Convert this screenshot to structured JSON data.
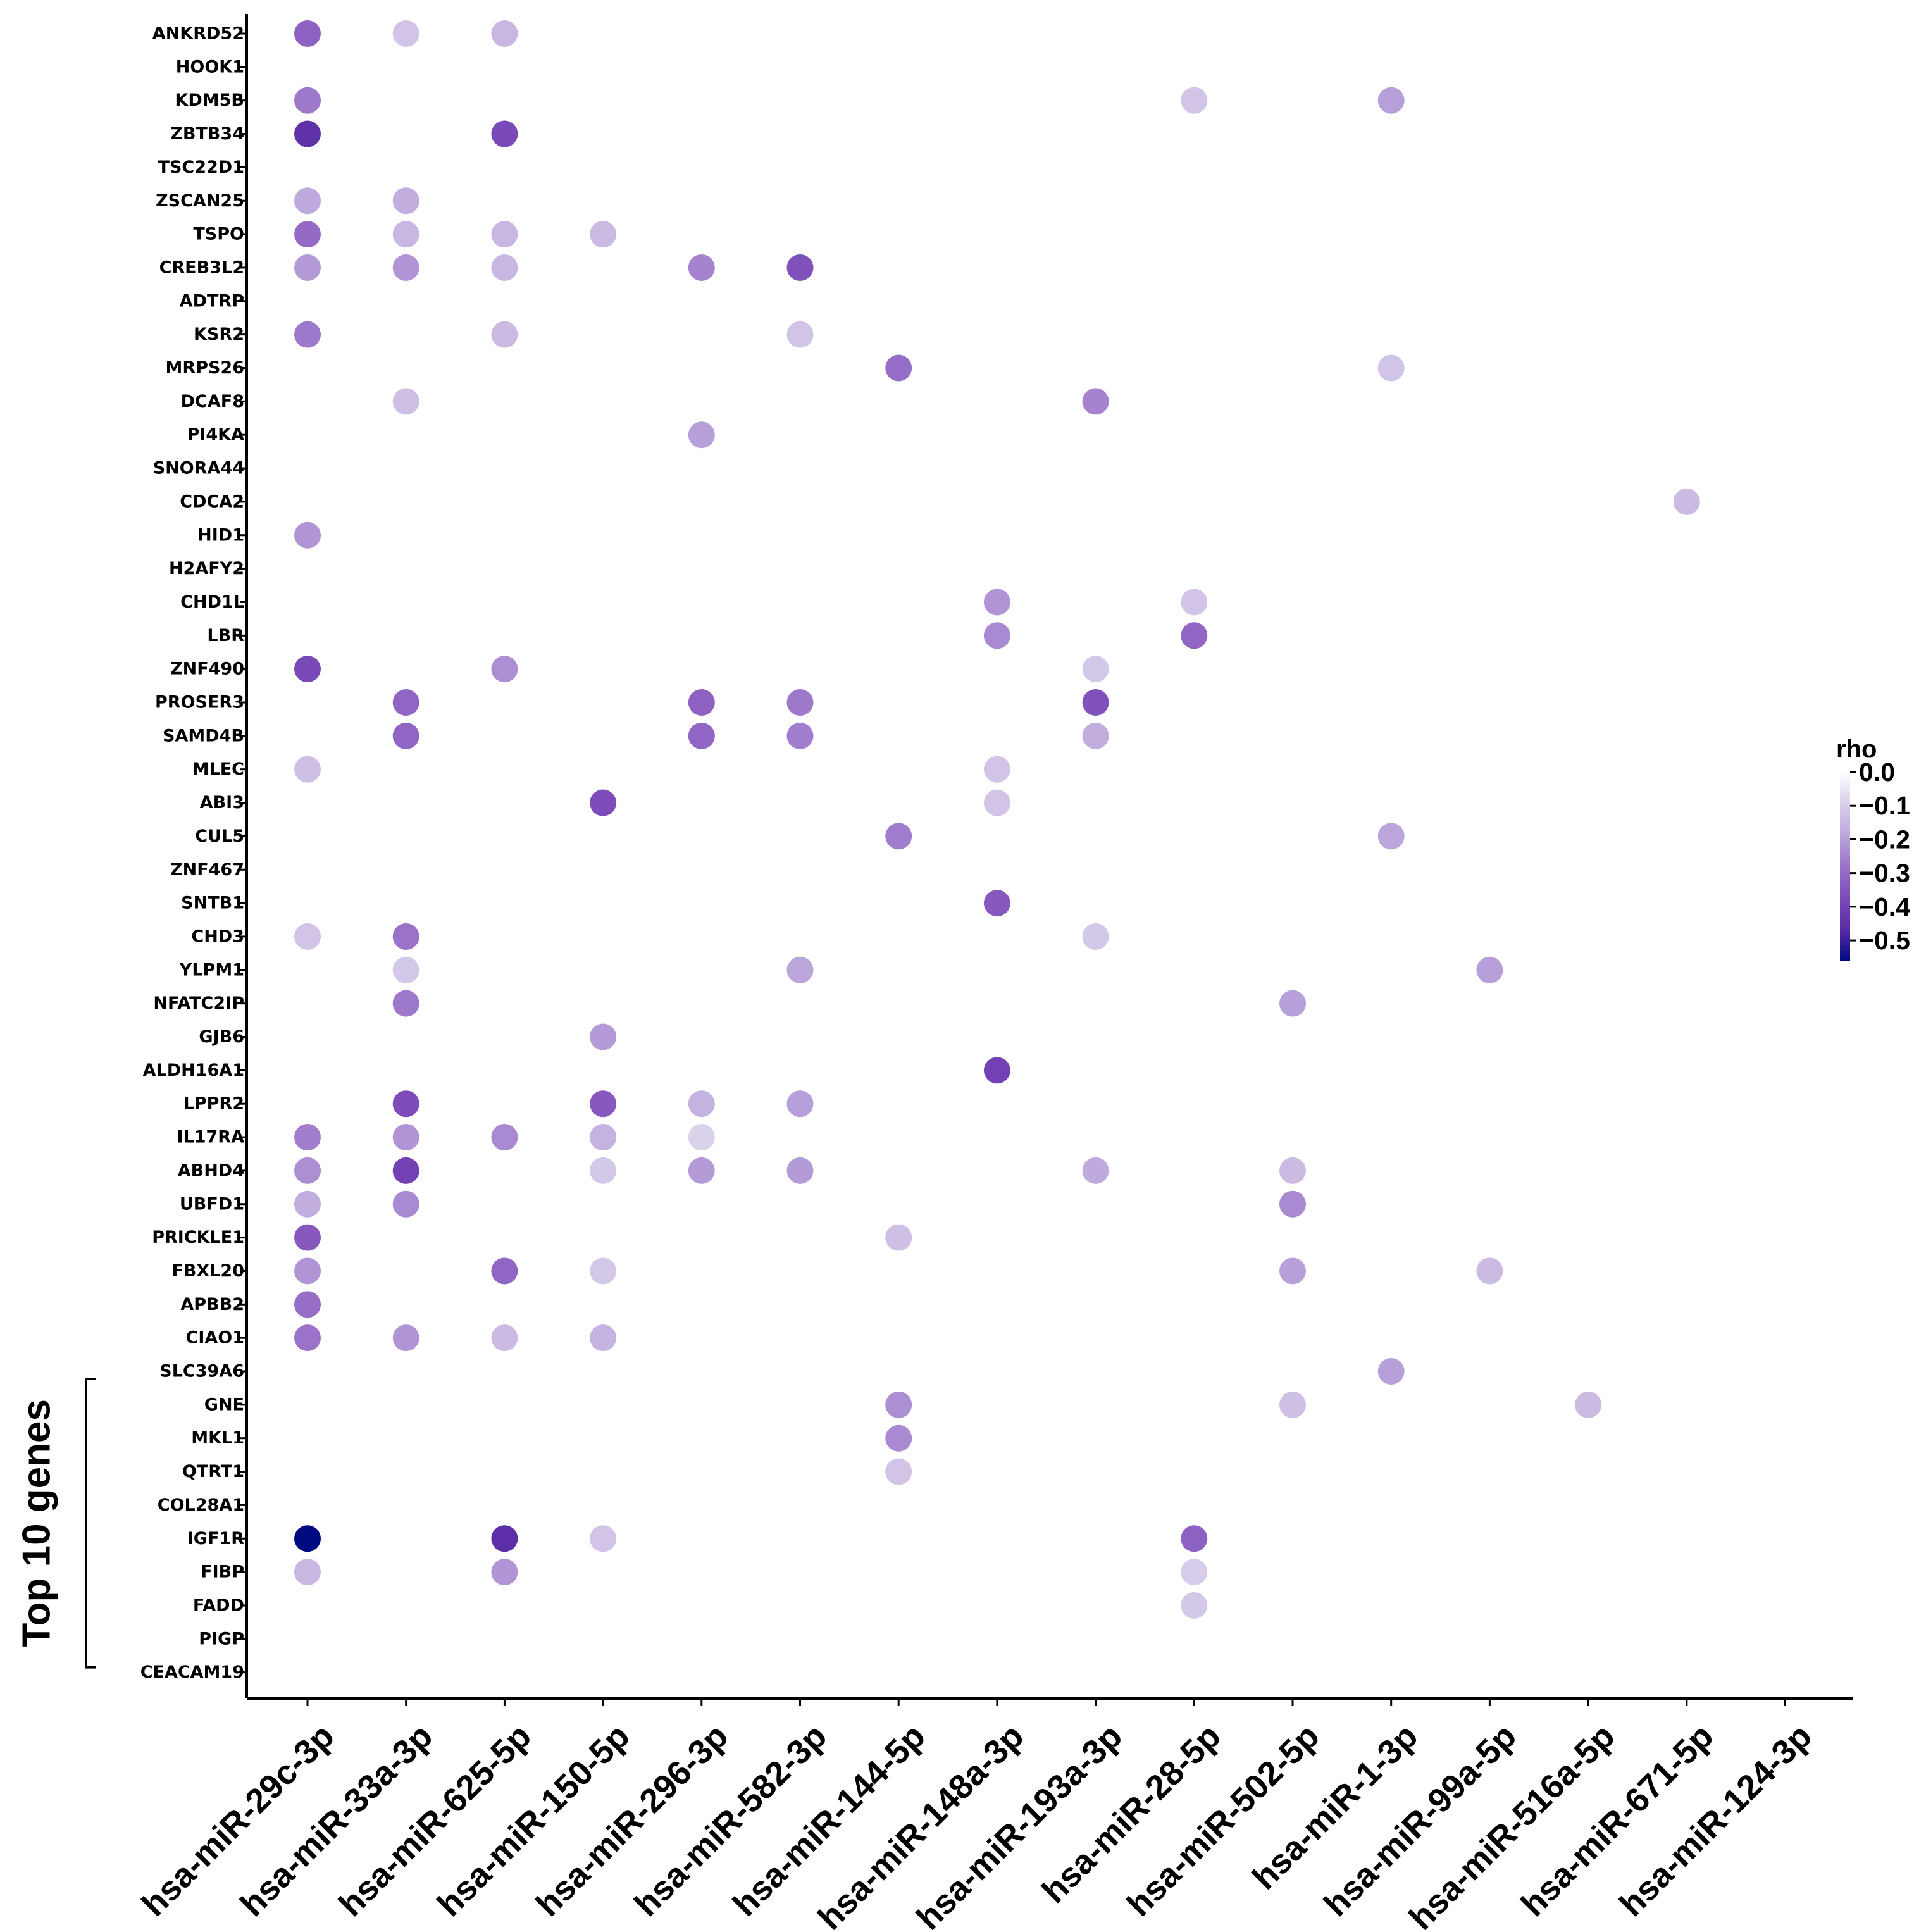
{
  "chart_data": {
    "type": "dot-plot",
    "title": "",
    "xlabel": "",
    "ylabel": "",
    "x_categories": [
      "hsa-miR-29c-3p",
      "hsa-miR-33a-3p",
      "hsa-miR-625-5p",
      "hsa-miR-150-5p",
      "hsa-miR-296-3p",
      "hsa-miR-582-3p",
      "hsa-miR-144-5p",
      "hsa-miR-148a-3p",
      "hsa-miR-193a-3p",
      "hsa-miR-28-5p",
      "hsa-miR-502-5p",
      "hsa-miR-1-3p",
      "hsa-miR-99a-5p",
      "hsa-miR-516a-5p",
      "hsa-miR-671-5p",
      "hsa-miR-124-3p"
    ],
    "y_categories": [
      "ANKRD52",
      "HOOK1",
      "KDM5B",
      "ZBTB34",
      "TSC22D1",
      "ZSCAN25",
      "TSPO",
      "CREB3L2",
      "ADTRP",
      "KSR2",
      "MRPS26",
      "DCAF8",
      "PI4KA",
      "SNORA44",
      "CDCA2",
      "HID1",
      "H2AFY2",
      "CHD1L",
      "LBR",
      "ZNF490",
      "PROSER3",
      "SAMD4B",
      "MLEC",
      "ABI3",
      "CUL5",
      "ZNF467",
      "SNTB1",
      "CHD3",
      "YLPM1",
      "NFATC2IP",
      "GJB6",
      "ALDH16A1",
      "LPPR2",
      "IL17RA",
      "ABHD4",
      "UBFD1",
      "PRICKLE1",
      "FBXL20",
      "APBB2",
      "CIAO1",
      "SLC39A6",
      "GNE",
      "MKL1",
      "QTRT1",
      "COL28A1",
      "IGF1R",
      "FIBP",
      "FADD",
      "PIGP",
      "CEACAM19"
    ],
    "points": [
      {
        "gene": "ANKRD52",
        "mirna": "hsa-miR-29c-3p",
        "rho": -0.32
      },
      {
        "gene": "ANKRD52",
        "mirna": "hsa-miR-33a-3p",
        "rho": -0.12
      },
      {
        "gene": "ANKRD52",
        "mirna": "hsa-miR-625-5p",
        "rho": -0.15
      },
      {
        "gene": "KDM5B",
        "mirna": "hsa-miR-29c-3p",
        "rho": -0.27
      },
      {
        "gene": "KDM5B",
        "mirna": "hsa-miR-28-5p",
        "rho": -0.12
      },
      {
        "gene": "KDM5B",
        "mirna": "hsa-miR-1-3p",
        "rho": -0.2
      },
      {
        "gene": "ZBTB34",
        "mirna": "hsa-miR-29c-3p",
        "rho": -0.45
      },
      {
        "gene": "ZBTB34",
        "mirna": "hsa-miR-625-5p",
        "rho": -0.38
      },
      {
        "gene": "ZSCAN25",
        "mirna": "hsa-miR-29c-3p",
        "rho": -0.18
      },
      {
        "gene": "ZSCAN25",
        "mirna": "hsa-miR-33a-3p",
        "rho": -0.17
      },
      {
        "gene": "TSPO",
        "mirna": "hsa-miR-29c-3p",
        "rho": -0.3
      },
      {
        "gene": "TSPO",
        "mirna": "hsa-miR-33a-3p",
        "rho": -0.15
      },
      {
        "gene": "TSPO",
        "mirna": "hsa-miR-625-5p",
        "rho": -0.15
      },
      {
        "gene": "TSPO",
        "mirna": "hsa-miR-150-5p",
        "rho": -0.14
      },
      {
        "gene": "CREB3L2",
        "mirna": "hsa-miR-29c-3p",
        "rho": -0.21
      },
      {
        "gene": "CREB3L2",
        "mirna": "hsa-miR-33a-3p",
        "rho": -0.22
      },
      {
        "gene": "CREB3L2",
        "mirna": "hsa-miR-625-5p",
        "rho": -0.15
      },
      {
        "gene": "CREB3L2",
        "mirna": "hsa-miR-296-3p",
        "rho": -0.25
      },
      {
        "gene": "CREB3L2",
        "mirna": "hsa-miR-582-3p",
        "rho": -0.36
      },
      {
        "gene": "KSR2",
        "mirna": "hsa-miR-29c-3p",
        "rho": -0.27
      },
      {
        "gene": "KSR2",
        "mirna": "hsa-miR-625-5p",
        "rho": -0.14
      },
      {
        "gene": "KSR2",
        "mirna": "hsa-miR-582-3p",
        "rho": -0.12
      },
      {
        "gene": "MRPS26",
        "mirna": "hsa-miR-144-5p",
        "rho": -0.29
      },
      {
        "gene": "MRPS26",
        "mirna": "hsa-miR-1-3p",
        "rho": -0.12
      },
      {
        "gene": "DCAF8",
        "mirna": "hsa-miR-33a-3p",
        "rho": -0.13
      },
      {
        "gene": "DCAF8",
        "mirna": "hsa-miR-193a-3p",
        "rho": -0.25
      },
      {
        "gene": "PI4KA",
        "mirna": "hsa-miR-296-3p",
        "rho": -0.2
      },
      {
        "gene": "CDCA2",
        "mirna": "hsa-miR-671-5p",
        "rho": -0.14
      },
      {
        "gene": "HID1",
        "mirna": "hsa-miR-29c-3p",
        "rho": -0.22
      },
      {
        "gene": "CHD1L",
        "mirna": "hsa-miR-148a-3p",
        "rho": -0.22
      },
      {
        "gene": "CHD1L",
        "mirna": "hsa-miR-28-5p",
        "rho": -0.12
      },
      {
        "gene": "LBR",
        "mirna": "hsa-miR-148a-3p",
        "rho": -0.24
      },
      {
        "gene": "LBR",
        "mirna": "hsa-miR-28-5p",
        "rho": -0.31
      },
      {
        "gene": "ZNF490",
        "mirna": "hsa-miR-29c-3p",
        "rho": -0.38
      },
      {
        "gene": "ZNF490",
        "mirna": "hsa-miR-625-5p",
        "rho": -0.23
      },
      {
        "gene": "ZNF490",
        "mirna": "hsa-miR-193a-3p",
        "rho": -0.11
      },
      {
        "gene": "PROSER3",
        "mirna": "hsa-miR-33a-3p",
        "rho": -0.31
      },
      {
        "gene": "PROSER3",
        "mirna": "hsa-miR-296-3p",
        "rho": -0.32
      },
      {
        "gene": "PROSER3",
        "mirna": "hsa-miR-582-3p",
        "rho": -0.27
      },
      {
        "gene": "PROSER3",
        "mirna": "hsa-miR-193a-3p",
        "rho": -0.36
      },
      {
        "gene": "SAMD4B",
        "mirna": "hsa-miR-33a-3p",
        "rho": -0.31
      },
      {
        "gene": "SAMD4B",
        "mirna": "hsa-miR-296-3p",
        "rho": -0.31
      },
      {
        "gene": "SAMD4B",
        "mirna": "hsa-miR-582-3p",
        "rho": -0.26
      },
      {
        "gene": "SAMD4B",
        "mirna": "hsa-miR-193a-3p",
        "rho": -0.17
      },
      {
        "gene": "MLEC",
        "mirna": "hsa-miR-29c-3p",
        "rho": -0.13
      },
      {
        "gene": "MLEC",
        "mirna": "hsa-miR-148a-3p",
        "rho": -0.12
      },
      {
        "gene": "ABI3",
        "mirna": "hsa-miR-150-5p",
        "rho": -0.37
      },
      {
        "gene": "ABI3",
        "mirna": "hsa-miR-148a-3p",
        "rho": -0.12
      },
      {
        "gene": "CUL5",
        "mirna": "hsa-miR-144-5p",
        "rho": -0.26
      },
      {
        "gene": "CUL5",
        "mirna": "hsa-miR-1-3p",
        "rho": -0.19
      },
      {
        "gene": "SNTB1",
        "mirna": "hsa-miR-148a-3p",
        "rho": -0.34
      },
      {
        "gene": "CHD3",
        "mirna": "hsa-miR-29c-3p",
        "rho": -0.12
      },
      {
        "gene": "CHD3",
        "mirna": "hsa-miR-33a-3p",
        "rho": -0.28
      },
      {
        "gene": "CHD3",
        "mirna": "hsa-miR-193a-3p",
        "rho": -0.11
      },
      {
        "gene": "YLPM1",
        "mirna": "hsa-miR-33a-3p",
        "rho": -0.11
      },
      {
        "gene": "YLPM1",
        "mirna": "hsa-miR-582-3p",
        "rho": -0.19
      },
      {
        "gene": "YLPM1",
        "mirna": "hsa-miR-99a-5p",
        "rho": -0.2
      },
      {
        "gene": "NFATC2IP",
        "mirna": "hsa-miR-33a-3p",
        "rho": -0.27
      },
      {
        "gene": "NFATC2IP",
        "mirna": "hsa-miR-502-5p",
        "rho": -0.2
      },
      {
        "gene": "GJB6",
        "mirna": "hsa-miR-150-5p",
        "rho": -0.21
      },
      {
        "gene": "ALDH16A1",
        "mirna": "hsa-miR-148a-3p",
        "rho": -0.4
      },
      {
        "gene": "LPPR2",
        "mirna": "hsa-miR-33a-3p",
        "rho": -0.37
      },
      {
        "gene": "LPPR2",
        "mirna": "hsa-miR-150-5p",
        "rho": -0.34
      },
      {
        "gene": "LPPR2",
        "mirna": "hsa-miR-296-3p",
        "rho": -0.16
      },
      {
        "gene": "LPPR2",
        "mirna": "hsa-miR-582-3p",
        "rho": -0.2
      },
      {
        "gene": "IL17RA",
        "mirna": "hsa-miR-29c-3p",
        "rho": -0.26
      },
      {
        "gene": "IL17RA",
        "mirna": "hsa-miR-33a-3p",
        "rho": -0.22
      },
      {
        "gene": "IL17RA",
        "mirna": "hsa-miR-625-5p",
        "rho": -0.24
      },
      {
        "gene": "IL17RA",
        "mirna": "hsa-miR-150-5p",
        "rho": -0.16
      },
      {
        "gene": "IL17RA",
        "mirna": "hsa-miR-296-3p",
        "rho": -0.09
      },
      {
        "gene": "ABHD4",
        "mirna": "hsa-miR-29c-3p",
        "rho": -0.23
      },
      {
        "gene": "ABHD4",
        "mirna": "hsa-miR-33a-3p",
        "rho": -0.4
      },
      {
        "gene": "ABHD4",
        "mirna": "hsa-miR-150-5p",
        "rho": -0.11
      },
      {
        "gene": "ABHD4",
        "mirna": "hsa-miR-296-3p",
        "rho": -0.21
      },
      {
        "gene": "ABHD4",
        "mirna": "hsa-miR-582-3p",
        "rho": -0.21
      },
      {
        "gene": "ABHD4",
        "mirna": "hsa-miR-193a-3p",
        "rho": -0.18
      },
      {
        "gene": "ABHD4",
        "mirna": "hsa-miR-502-5p",
        "rho": -0.14
      },
      {
        "gene": "UBFD1",
        "mirna": "hsa-miR-29c-3p",
        "rho": -0.17
      },
      {
        "gene": "UBFD1",
        "mirna": "hsa-miR-33a-3p",
        "rho": -0.24
      },
      {
        "gene": "UBFD1",
        "mirna": "hsa-miR-502-5p",
        "rho": -0.24
      },
      {
        "gene": "PRICKLE1",
        "mirna": "hsa-miR-29c-3p",
        "rho": -0.34
      },
      {
        "gene": "PRICKLE1",
        "mirna": "hsa-miR-144-5p",
        "rho": -0.13
      },
      {
        "gene": "FBXL20",
        "mirna": "hsa-miR-29c-3p",
        "rho": -0.22
      },
      {
        "gene": "FBXL20",
        "mirna": "hsa-miR-625-5p",
        "rho": -0.31
      },
      {
        "gene": "FBXL20",
        "mirna": "hsa-miR-150-5p",
        "rho": -0.11
      },
      {
        "gene": "FBXL20",
        "mirna": "hsa-miR-502-5p",
        "rho": -0.2
      },
      {
        "gene": "FBXL20",
        "mirna": "hsa-miR-99a-5p",
        "rho": -0.14
      },
      {
        "gene": "APBB2",
        "mirna": "hsa-miR-29c-3p",
        "rho": -0.29
      },
      {
        "gene": "CIAO1",
        "mirna": "hsa-miR-29c-3p",
        "rho": -0.28
      },
      {
        "gene": "CIAO1",
        "mirna": "hsa-miR-33a-3p",
        "rho": -0.22
      },
      {
        "gene": "CIAO1",
        "mirna": "hsa-miR-625-5p",
        "rho": -0.14
      },
      {
        "gene": "CIAO1",
        "mirna": "hsa-miR-150-5p",
        "rho": -0.16
      },
      {
        "gene": "SLC39A6",
        "mirna": "hsa-miR-1-3p",
        "rho": -0.2
      },
      {
        "gene": "GNE",
        "mirna": "hsa-miR-144-5p",
        "rho": -0.23
      },
      {
        "gene": "GNE",
        "mirna": "hsa-miR-502-5p",
        "rho": -0.13
      },
      {
        "gene": "GNE",
        "mirna": "hsa-miR-516a-5p",
        "rho": -0.14
      },
      {
        "gene": "MKL1",
        "mirna": "hsa-miR-144-5p",
        "rho": -0.24
      },
      {
        "gene": "QTRT1",
        "mirna": "hsa-miR-144-5p",
        "rho": -0.12
      },
      {
        "gene": "IGF1R",
        "mirna": "hsa-miR-29c-3p",
        "rho": -0.56
      },
      {
        "gene": "IGF1R",
        "mirna": "hsa-miR-625-5p",
        "rho": -0.46
      },
      {
        "gene": "IGF1R",
        "mirna": "hsa-miR-150-5p",
        "rho": -0.12
      },
      {
        "gene": "IGF1R",
        "mirna": "hsa-miR-28-5p",
        "rho": -0.32
      },
      {
        "gene": "FIBP",
        "mirna": "hsa-miR-29c-3p",
        "rho": -0.15
      },
      {
        "gene": "FIBP",
        "mirna": "hsa-miR-625-5p",
        "rho": -0.22
      },
      {
        "gene": "FIBP",
        "mirna": "hsa-miR-28-5p",
        "rho": -0.1
      },
      {
        "gene": "FADD",
        "mirna": "hsa-miR-28-5p",
        "rho": -0.11
      }
    ],
    "colorbar": {
      "title": "rho",
      "range": [
        -0.56,
        0.0
      ],
      "ticks": [
        0.0,
        -0.1,
        -0.2,
        -0.3,
        -0.4,
        -0.5
      ],
      "tick_labels": [
        "0.0",
        "−0.1",
        "−0.2",
        "−0.3",
        "−0.4",
        "−0.5"
      ],
      "colors": [
        "#ffffff",
        "#d9cfea",
        "#bca7dc",
        "#9a72c9",
        "#7c4bb9",
        "#5a2ca6",
        "#000a80"
      ],
      "legend_position": "right"
    },
    "annotation": {
      "label": "Top 10 genes",
      "from_gene": "SLC39A6",
      "to_gene": "CEACAM19"
    },
    "grid": false
  }
}
